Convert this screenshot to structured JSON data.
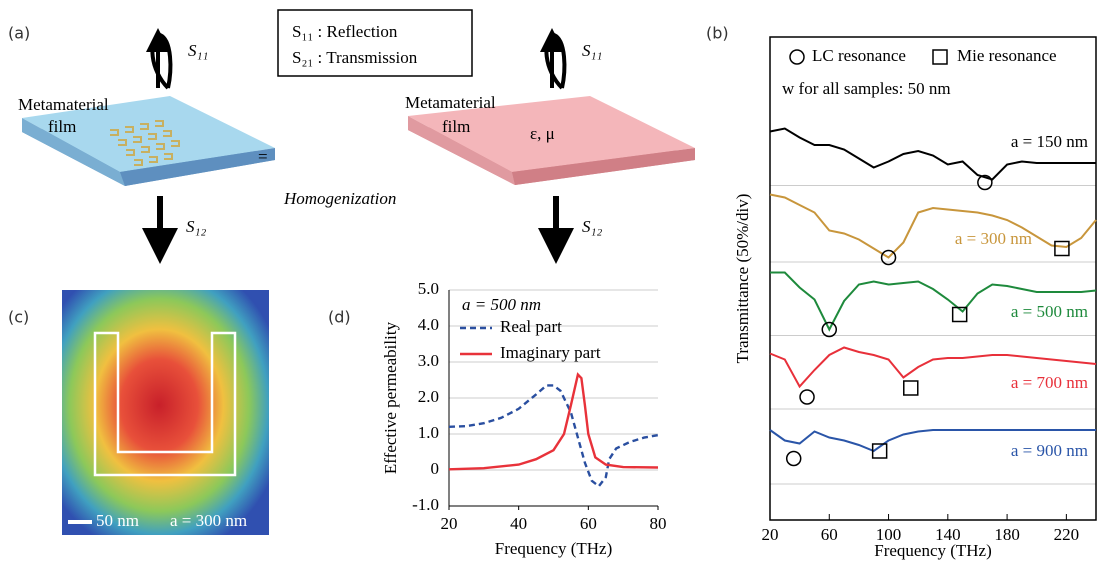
{
  "panel_labels": [
    "(a)",
    "(b)",
    "(c)",
    "(d)"
  ],
  "diagram": {
    "legend_box": [
      "S₁₁ : Reflection",
      "S₂₁ : Transmission"
    ],
    "left_film": {
      "label": [
        "Metamaterial",
        "film"
      ],
      "incident": "S₁₁",
      "transmitted": "S₁₂"
    },
    "right_film": {
      "label": [
        "Metamaterial",
        "film"
      ],
      "parameters": "ε, μ",
      "incident": "S₁₁",
      "transmitted": "S₁₂"
    },
    "equals": "=",
    "process": "Homogenization"
  },
  "field_map": {
    "scale_bar": "50 nm",
    "period": "a = 300 nm"
  },
  "chart_data": [
    {
      "type": "line",
      "legend_title": "a = 500 nm",
      "x_label": "Frequency (THz)",
      "y_label": "Effective permeability",
      "xlim": [
        20,
        80
      ],
      "ylim": [
        -1,
        5
      ],
      "xticks": [
        20,
        40,
        60,
        80
      ],
      "yticks": [
        {
          "value": -1,
          "label": "-1.0"
        },
        0,
        {
          "value": 1,
          "label": "1.0"
        },
        {
          "value": 2,
          "label": "2.0"
        },
        {
          "value": 3,
          "label": "3.0"
        },
        {
          "value": 4,
          "label": "4.0"
        },
        {
          "value": 5,
          "label": "5.0"
        }
      ],
      "grid": true,
      "series": [
        {
          "name": "Real part",
          "color": "#2a4fa0",
          "line_style": "dashed",
          "x": [
            20,
            25,
            30,
            35,
            40,
            45,
            48,
            50,
            52,
            55,
            57,
            59,
            61,
            63,
            65,
            66,
            68,
            72,
            76,
            80
          ],
          "values": [
            1.2,
            1.22,
            1.3,
            1.45,
            1.7,
            2.1,
            2.35,
            2.35,
            2.2,
            1.6,
            0.9,
            0.2,
            -0.3,
            -0.45,
            -0.2,
            0.3,
            0.6,
            0.78,
            0.9,
            0.97
          ]
        },
        {
          "name": "Imaginary part",
          "color": "#e8323a",
          "line_style": "solid",
          "x": [
            20,
            30,
            40,
            45,
            50,
            53,
            55,
            57,
            58,
            59,
            60,
            62,
            65,
            70,
            80
          ],
          "values": [
            0.02,
            0.05,
            0.15,
            0.3,
            0.55,
            1.0,
            1.8,
            2.65,
            2.55,
            1.8,
            1.0,
            0.35,
            0.15,
            0.08,
            0.07
          ]
        }
      ]
    },
    {
      "type": "spectra",
      "x_label": "Frequency (THz)",
      "y_label": "Transmittance (50%/div)",
      "legend": [
        "LC resonance",
        "Mie resonance"
      ],
      "note": "w for all samples: 50 nm",
      "xlim": [
        20,
        240
      ],
      "ylim": [
        11,
        333
      ],
      "xticks": [
        20,
        60,
        100,
        140,
        180,
        220
      ],
      "ygrid": [
        35,
        85,
        134,
        183,
        234
      ],
      "x": [
        20,
        30,
        40,
        50,
        60,
        70,
        80,
        90,
        100,
        110,
        120,
        130,
        140,
        150,
        160,
        170,
        180,
        190,
        200,
        210,
        220,
        230,
        240
      ],
      "series": [
        {
          "name": "a = 150 nm",
          "color": "#000000",
          "values": [
            270,
            272,
            266,
            261,
            261,
            258,
            252,
            246,
            250,
            255,
            257,
            254,
            248,
            250,
            241,
            238,
            248,
            250,
            249,
            249,
            249,
            249,
            249
          ],
          "lc_resonance": [
            165,
            236
          ]
        },
        {
          "name": "a = 300 nm",
          "color": "#c8963c",
          "values": [
            228,
            226,
            221,
            216,
            204,
            202,
            198,
            192,
            186,
            196,
            216,
            219,
            218,
            217,
            216,
            214,
            211,
            206,
            200,
            194,
            193,
            199,
            211
          ],
          "lc_resonance": [
            100,
            186
          ],
          "mie_resonance": [
            217,
            192
          ]
        },
        {
          "name": "a = 500 nm",
          "color": "#1e8a3c",
          "values": [
            176,
            176,
            166,
            158,
            138,
            157,
            168,
            170,
            168,
            169,
            170,
            165,
            158,
            150,
            162,
            168,
            167,
            165,
            163,
            163,
            163,
            163,
            164
          ],
          "lc_resonance": [
            60,
            138
          ],
          "mie_resonance": [
            148,
            148
          ]
        },
        {
          "name": "a = 700 nm",
          "color": "#e8303a",
          "values": [
            122,
            118,
            100,
            111,
            121,
            126,
            123,
            121,
            118,
            106,
            113,
            118,
            119,
            119,
            120,
            121,
            121,
            120,
            119,
            118,
            117,
            116,
            115
          ],
          "lc_resonance": [
            45,
            93
          ],
          "mie_resonance": [
            115,
            99
          ]
        },
        {
          "name": "a = 900 nm",
          "color": "#2a55a8",
          "values": [
            71,
            64,
            62,
            70,
            66,
            64,
            61,
            57,
            64,
            68,
            70,
            71,
            71,
            71,
            71,
            71,
            71,
            71,
            71,
            71,
            71,
            71,
            71
          ],
          "lc_resonance": [
            36,
            52
          ],
          "mie_resonance": [
            94,
            57
          ]
        }
      ]
    }
  ]
}
